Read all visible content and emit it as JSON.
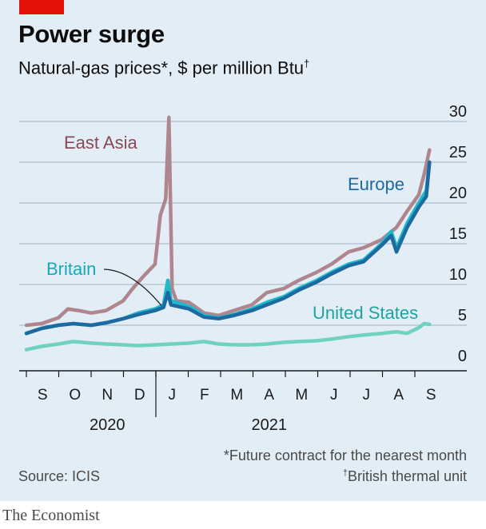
{
  "title": "Power surge",
  "subtitle": "Natural-gas prices*, $ per million Btu",
  "subtitle_mark": "†",
  "footnote_future": "*Future contract for the nearest month",
  "footnote_btu_mark": "†",
  "footnote_btu": "British thermal unit",
  "source": "Source: ICIS",
  "brand": "The Economist",
  "colors": {
    "background": "#e3edf5",
    "accent_red": "#e3120b",
    "east_asia": "#b0868e",
    "europe": "#1c6aa0",
    "britain": "#20b9cc",
    "united_states": "#6fd1c0"
  },
  "chart_data": {
    "type": "line",
    "xlabel": "",
    "ylabel": "",
    "x_start": "2020-09-01",
    "ylim": [
      0,
      30
    ],
    "yticks": [
      0,
      5,
      10,
      15,
      20,
      25,
      30
    ],
    "month_ticks": [
      "S",
      "O",
      "N",
      "D",
      "J",
      "F",
      "M",
      "A",
      "M",
      "J",
      "J",
      "A",
      "S"
    ],
    "year_labels": [
      {
        "label": "2020",
        "month_index": 2.5
      },
      {
        "label": "2021",
        "month_index": 7.5
      }
    ],
    "grid": true,
    "series": [
      {
        "name": "East Asia",
        "color": "#b0868e",
        "points": [
          [
            "2020-09-01",
            5.0
          ],
          [
            "2020-09-15",
            5.2
          ],
          [
            "2020-10-01",
            5.9
          ],
          [
            "2020-10-10",
            7.0
          ],
          [
            "2020-10-20",
            6.8
          ],
          [
            "2020-11-01",
            6.5
          ],
          [
            "2020-11-15",
            6.8
          ],
          [
            "2020-12-01",
            8.0
          ],
          [
            "2020-12-10",
            9.5
          ],
          [
            "2020-12-20",
            11.0
          ],
          [
            "2020-12-31",
            12.5
          ],
          [
            "2021-01-05",
            18.5
          ],
          [
            "2021-01-10",
            20.5
          ],
          [
            "2021-01-13",
            30.5
          ],
          [
            "2021-01-16",
            9.5
          ],
          [
            "2021-01-20",
            8.0
          ],
          [
            "2021-02-01",
            7.8
          ],
          [
            "2021-02-15",
            6.5
          ],
          [
            "2021-03-01",
            6.2
          ],
          [
            "2021-03-15",
            6.8
          ],
          [
            "2021-04-01",
            7.5
          ],
          [
            "2021-04-15",
            9.0
          ],
          [
            "2021-05-01",
            9.5
          ],
          [
            "2021-05-15",
            10.5
          ],
          [
            "2021-06-01",
            11.5
          ],
          [
            "2021-06-15",
            12.5
          ],
          [
            "2021-07-01",
            14.0
          ],
          [
            "2021-07-15",
            14.5
          ],
          [
            "2021-08-01",
            15.5
          ],
          [
            "2021-08-15",
            17.0
          ],
          [
            "2021-08-25",
            19.0
          ],
          [
            "2021-09-05",
            21.0
          ],
          [
            "2021-09-10",
            23.5
          ],
          [
            "2021-09-15",
            26.5
          ]
        ]
      },
      {
        "name": "Britain",
        "color": "#20b9cc",
        "points": [
          [
            "2020-09-01",
            4.0
          ],
          [
            "2020-09-15",
            4.6
          ],
          [
            "2020-10-01",
            5.0
          ],
          [
            "2020-10-15",
            5.2
          ],
          [
            "2020-11-01",
            5.0
          ],
          [
            "2020-11-15",
            5.3
          ],
          [
            "2020-12-01",
            5.8
          ],
          [
            "2020-12-15",
            6.5
          ],
          [
            "2020-12-31",
            7.0
          ],
          [
            "2021-01-08",
            7.5
          ],
          [
            "2021-01-12",
            10.5
          ],
          [
            "2021-01-15",
            8.0
          ],
          [
            "2021-02-01",
            7.3
          ],
          [
            "2021-02-15",
            6.2
          ],
          [
            "2021-03-01",
            5.9
          ],
          [
            "2021-03-15",
            6.3
          ],
          [
            "2021-04-01",
            7.0
          ],
          [
            "2021-04-15",
            7.8
          ],
          [
            "2021-05-01",
            8.5
          ],
          [
            "2021-05-15",
            9.5
          ],
          [
            "2021-06-01",
            10.5
          ],
          [
            "2021-06-15",
            11.5
          ],
          [
            "2021-07-01",
            12.5
          ],
          [
            "2021-07-15",
            13.0
          ],
          [
            "2021-08-01",
            15.0
          ],
          [
            "2021-08-10",
            16.5
          ],
          [
            "2021-08-15",
            14.5
          ],
          [
            "2021-08-25",
            17.5
          ],
          [
            "2021-09-05",
            20.0
          ],
          [
            "2021-09-12",
            21.5
          ],
          [
            "2021-09-15",
            25.0
          ]
        ]
      },
      {
        "name": "Europe",
        "color": "#1c6aa0",
        "points": [
          [
            "2020-09-01",
            4.0
          ],
          [
            "2020-09-15",
            4.6
          ],
          [
            "2020-10-01",
            5.0
          ],
          [
            "2020-10-15",
            5.2
          ],
          [
            "2020-11-01",
            5.0
          ],
          [
            "2020-11-15",
            5.3
          ],
          [
            "2020-12-01",
            5.8
          ],
          [
            "2020-12-15",
            6.3
          ],
          [
            "2020-12-31",
            6.8
          ],
          [
            "2021-01-08",
            7.2
          ],
          [
            "2021-01-12",
            9.0
          ],
          [
            "2021-01-15",
            7.5
          ],
          [
            "2021-02-01",
            7.0
          ],
          [
            "2021-02-15",
            6.0
          ],
          [
            "2021-03-01",
            5.8
          ],
          [
            "2021-03-15",
            6.2
          ],
          [
            "2021-04-01",
            6.8
          ],
          [
            "2021-04-15",
            7.5
          ],
          [
            "2021-05-01",
            8.3
          ],
          [
            "2021-05-15",
            9.3
          ],
          [
            "2021-06-01",
            10.3
          ],
          [
            "2021-06-15",
            11.3
          ],
          [
            "2021-07-01",
            12.3
          ],
          [
            "2021-07-15",
            12.8
          ],
          [
            "2021-08-01",
            14.8
          ],
          [
            "2021-08-10",
            16.0
          ],
          [
            "2021-08-15",
            14.0
          ],
          [
            "2021-08-25",
            17.0
          ],
          [
            "2021-09-05",
            19.5
          ],
          [
            "2021-09-12",
            20.8
          ],
          [
            "2021-09-15",
            25.0
          ]
        ]
      },
      {
        "name": "United States",
        "color": "#6fd1c0",
        "points": [
          [
            "2020-09-01",
            2.0
          ],
          [
            "2020-09-15",
            2.4
          ],
          [
            "2020-10-01",
            2.7
          ],
          [
            "2020-10-15",
            3.0
          ],
          [
            "2020-11-01",
            2.8
          ],
          [
            "2020-11-15",
            2.7
          ],
          [
            "2020-12-01",
            2.6
          ],
          [
            "2020-12-15",
            2.5
          ],
          [
            "2021-01-01",
            2.6
          ],
          [
            "2021-01-15",
            2.7
          ],
          [
            "2021-02-01",
            2.8
          ],
          [
            "2021-02-15",
            3.0
          ],
          [
            "2021-03-01",
            2.7
          ],
          [
            "2021-03-15",
            2.6
          ],
          [
            "2021-04-01",
            2.6
          ],
          [
            "2021-04-15",
            2.7
          ],
          [
            "2021-05-01",
            2.9
          ],
          [
            "2021-05-15",
            3.0
          ],
          [
            "2021-06-01",
            3.1
          ],
          [
            "2021-06-15",
            3.3
          ],
          [
            "2021-07-01",
            3.6
          ],
          [
            "2021-07-15",
            3.8
          ],
          [
            "2021-08-01",
            4.0
          ],
          [
            "2021-08-15",
            4.2
          ],
          [
            "2021-08-25",
            4.0
          ],
          [
            "2021-09-05",
            4.7
          ],
          [
            "2021-09-10",
            5.2
          ],
          [
            "2021-09-15",
            5.1
          ]
        ]
      }
    ],
    "annotations": [
      "East Asia",
      "Europe",
      "Britain",
      "United States"
    ]
  }
}
